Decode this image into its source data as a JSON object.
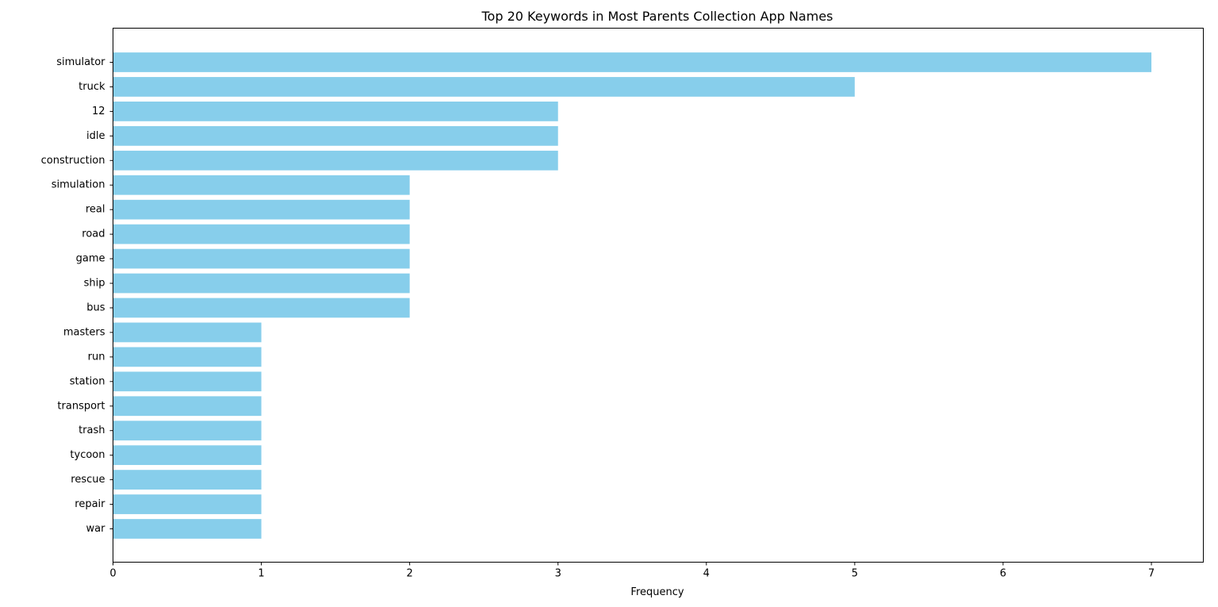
{
  "chart_data": {
    "type": "bar",
    "orientation": "horizontal",
    "title": "Top 20 Keywords in Most Parents Collection App Names",
    "xlabel": "Frequency",
    "ylabel": "",
    "categories": [
      "simulator",
      "truck",
      "12",
      "idle",
      "construction",
      "simulation",
      "real",
      "road",
      "game",
      "ship",
      "bus",
      "masters",
      "run",
      "station",
      "transport",
      "trash",
      "tycoon",
      "rescue",
      "repair",
      "war"
    ],
    "values": [
      7,
      5,
      3,
      3,
      3,
      2,
      2,
      2,
      2,
      2,
      2,
      1,
      1,
      1,
      1,
      1,
      1,
      1,
      1,
      1
    ],
    "xticks": [
      "0",
      "1",
      "2",
      "3",
      "4",
      "5",
      "6",
      "7"
    ],
    "xlim": [
      0,
      7.35
    ],
    "grid": false,
    "legend": "none",
    "colors": {
      "bar": "#87ceeb",
      "axes": "#000000",
      "background": "#ffffff"
    }
  }
}
